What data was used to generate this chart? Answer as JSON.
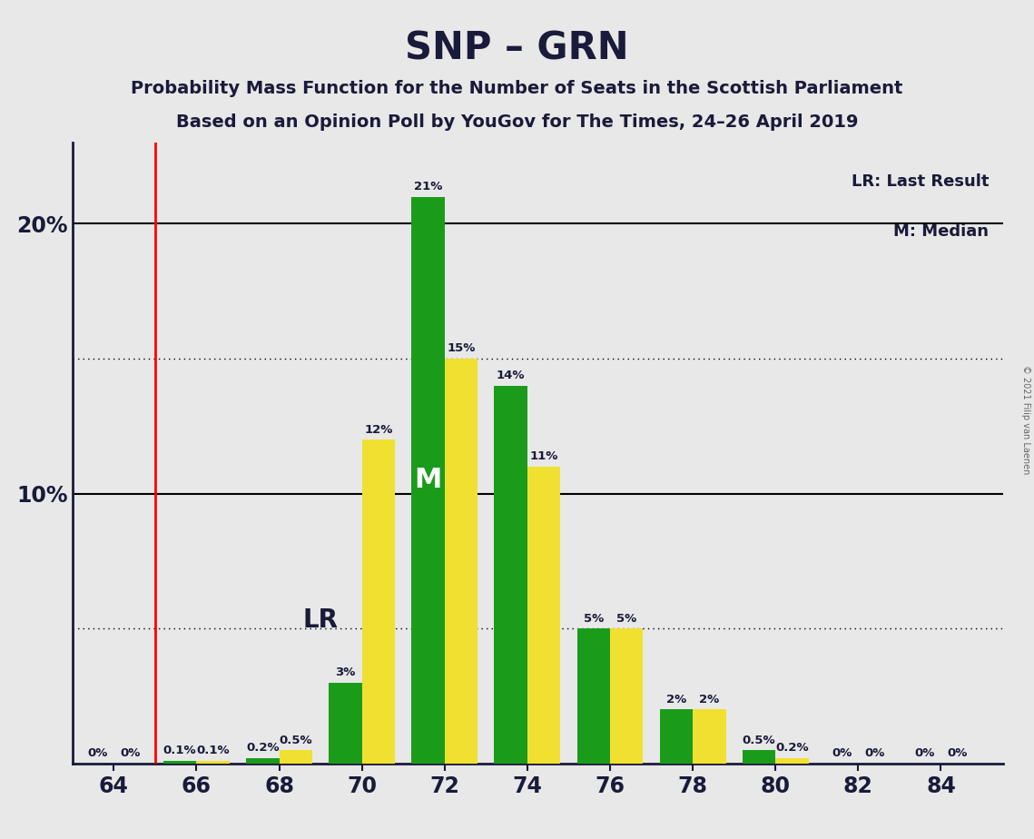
{
  "title": "SNP – GRN",
  "subtitle1": "Probability Mass Function for the Number of Seats in the Scottish Parliament",
  "subtitle2": "Based on an Opinion Poll by YouGov for The Times, 24–26 April 2019",
  "copyright": "© 2021 Filip van Laenen",
  "seats": [
    64,
    66,
    68,
    70,
    72,
    74,
    76,
    78,
    80,
    82,
    84
  ],
  "snp_values": [
    0.0,
    0.1,
    0.2,
    3.0,
    21.0,
    14.0,
    5.0,
    2.0,
    0.5,
    0.0,
    0.0
  ],
  "grn_values": [
    0.0,
    0.1,
    0.5,
    12.0,
    15.0,
    11.0,
    5.0,
    2.0,
    0.2,
    0.0,
    0.0
  ],
  "snp_small_labels": [
    null,
    "0.1%",
    "0.2%",
    "3%",
    "21%",
    "14%",
    "5%",
    "2%",
    "0.5%",
    "0%",
    "0%"
  ],
  "grn_small_labels": [
    "0%",
    "0.1%",
    "0.5%",
    "12%",
    "15%",
    "11%",
    "5%",
    "2%",
    "0.2%",
    "0%",
    "0%"
  ],
  "snp_color": "#1a9c1a",
  "grn_color": "#f0e030",
  "background_color": "#e8e8e8",
  "last_result_x": 65.0,
  "lr_label": "LR",
  "median_label": "M",
  "median_x": 72,
  "legend_lr": "LR: Last Result",
  "legend_m": "M: Median",
  "xlim": [
    63.0,
    85.5
  ],
  "ylim": [
    0,
    23
  ],
  "ytick_positions": [
    10,
    20
  ],
  "ytick_labels": [
    "10%",
    "20%"
  ],
  "xticks": [
    64,
    66,
    68,
    70,
    72,
    74,
    76,
    78,
    80,
    82,
    84
  ],
  "dotted_gridlines": [
    5,
    15
  ],
  "solid_gridlines": [
    10,
    20
  ]
}
